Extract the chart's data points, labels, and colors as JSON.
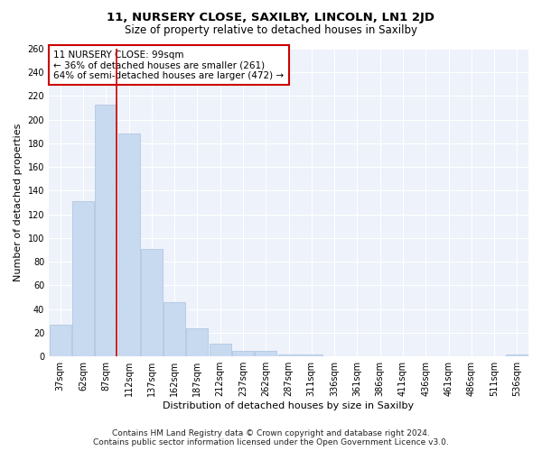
{
  "title1": "11, NURSERY CLOSE, SAXILBY, LINCOLN, LN1 2JD",
  "title2": "Size of property relative to detached houses in Saxilby",
  "xlabel": "Distribution of detached houses by size in Saxilby",
  "ylabel": "Number of detached properties",
  "categories": [
    "37sqm",
    "62sqm",
    "87sqm",
    "112sqm",
    "137sqm",
    "162sqm",
    "187sqm",
    "212sqm",
    "237sqm",
    "262sqm",
    "287sqm",
    "311sqm",
    "336sqm",
    "361sqm",
    "386sqm",
    "411sqm",
    "436sqm",
    "461sqm",
    "486sqm",
    "511sqm",
    "536sqm"
  ],
  "values": [
    27,
    131,
    213,
    188,
    91,
    46,
    24,
    11,
    5,
    5,
    2,
    2,
    0,
    0,
    0,
    0,
    0,
    0,
    0,
    0,
    2
  ],
  "bar_color": "#c8daf0",
  "bar_edgecolor": "#a8c0e0",
  "redline_index": 2,
  "annotation_line1": "11 NURSERY CLOSE: 99sqm",
  "annotation_line2": "← 36% of detached houses are smaller (261)",
  "annotation_line3": "64% of semi-detached houses are larger (472) →",
  "annotation_box_facecolor": "#ffffff",
  "annotation_box_edgecolor": "#cc0000",
  "redline_color": "#cc0000",
  "ylim_max": 260,
  "yticks": [
    0,
    20,
    40,
    60,
    80,
    100,
    120,
    140,
    160,
    180,
    200,
    220,
    240,
    260
  ],
  "plot_bg_color": "#eef2fa",
  "grid_color": "#ffffff",
  "footer1": "Contains HM Land Registry data © Crown copyright and database right 2024.",
  "footer2": "Contains public sector information licensed under the Open Government Licence v3.0.",
  "title1_fontsize": 9.5,
  "title2_fontsize": 8.5,
  "xlabel_fontsize": 8,
  "ylabel_fontsize": 8,
  "tick_fontsize": 7,
  "annotation_fontsize": 7.5,
  "footer_fontsize": 6.5
}
